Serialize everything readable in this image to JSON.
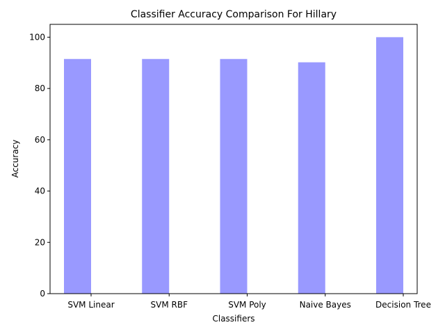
{
  "chart_data": {
    "type": "bar",
    "title": "Classifier Accuracy Comparison For Hillary",
    "xlabel": "Classifiers",
    "ylabel": "Accuracy",
    "categories": [
      "SVM Linear",
      "SVM RBF",
      "SVM Poly",
      "Naive Bayes",
      "Decision Tree"
    ],
    "values": [
      91.5,
      91.5,
      91.5,
      90.2,
      100.0
    ],
    "ylim": [
      0,
      105
    ],
    "yticks": [
      0,
      20,
      40,
      60,
      80,
      100
    ],
    "bar_color": "#9999ff",
    "grid": false,
    "legend": "none"
  }
}
